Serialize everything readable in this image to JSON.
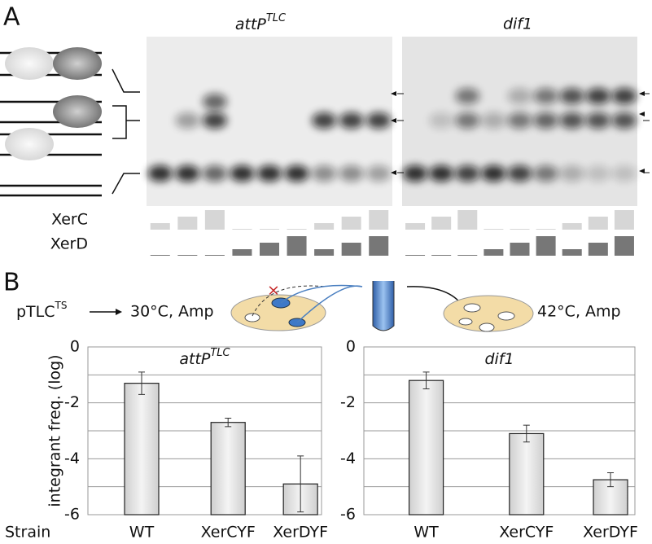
{
  "panel_labels": [
    "A",
    "B"
  ],
  "gel": {
    "titles": [
      {
        "text": "attP",
        "sup": "TLC"
      },
      {
        "text": "dif1"
      }
    ],
    "rows": [
      "XerC",
      "XerD"
    ]
  },
  "scheme": {
    "plasmid": {
      "text": "pTLC",
      "sup": "TS"
    },
    "step1": "30°C, Amp",
    "step2": "42°C, Amp"
  },
  "chart_data": [
    {
      "type": "bar",
      "title": {
        "text": "attP",
        "sup": "TLC"
      },
      "ylabel": "integrant freq. (log)",
      "xlabel": "Strain",
      "categories": [
        "WT",
        "XerCYF",
        "XerDYF"
      ],
      "values": [
        -1.3,
        -2.7,
        -4.9
      ],
      "errors": [
        0.4,
        0.15,
        1.0
      ],
      "color": "#e2e2e2",
      "ylim": [
        -6,
        0
      ],
      "yticks": [
        0,
        -2,
        -4,
        -6
      ],
      "minor_yticks": [
        -1,
        -3,
        -5
      ],
      "grid": true
    },
    {
      "type": "bar",
      "title": {
        "text": "dif1"
      },
      "categories": [
        "WT",
        "XerCYF",
        "XerDYF"
      ],
      "values": [
        -1.2,
        -3.1,
        -4.75
      ],
      "errors": [
        0.3,
        0.3,
        0.25
      ],
      "color": "#e2e2e2",
      "ylim": [
        -6,
        0
      ],
      "yticks": [
        0,
        -2,
        -4,
        -6
      ],
      "minor_yticks": [
        -1,
        -3,
        -5
      ],
      "grid": true
    }
  ]
}
